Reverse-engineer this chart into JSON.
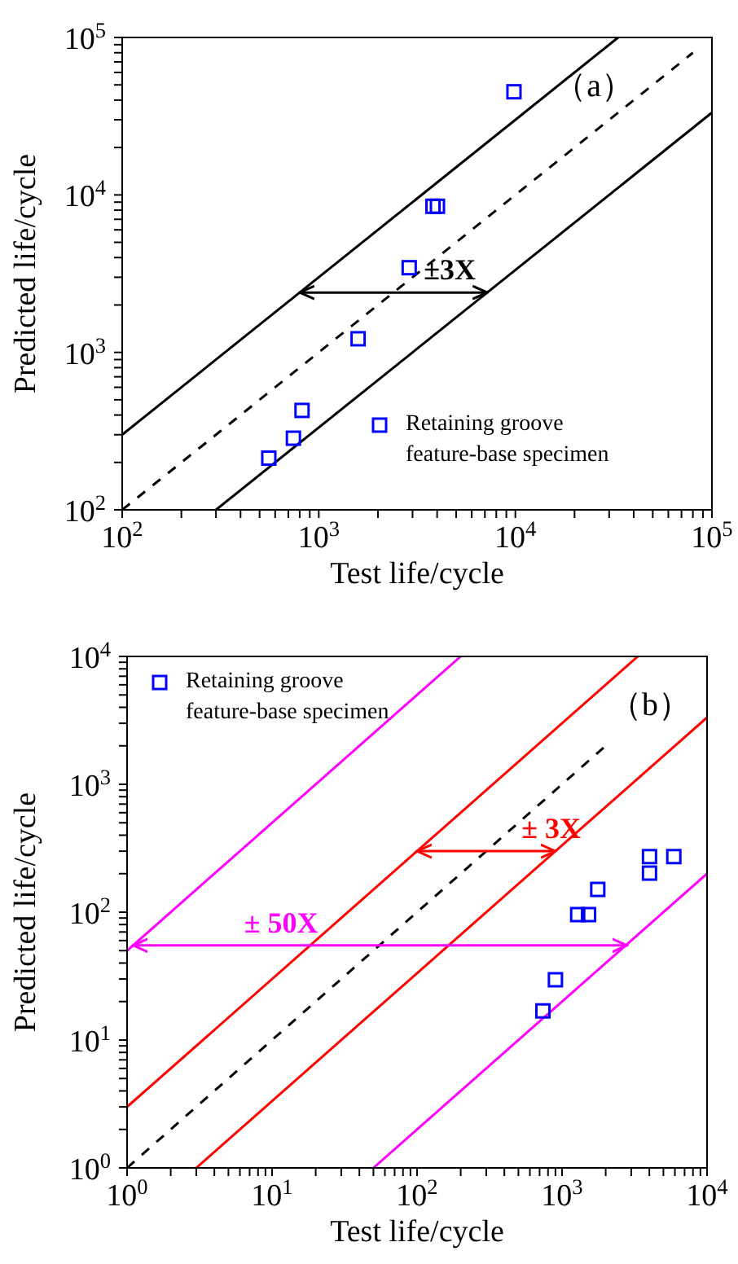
{
  "chart_data": [
    {
      "type": "scatter",
      "xlabel": "Test life/cycle",
      "ylabel": "Predicted life/cycle",
      "log": "xy",
      "legend": "bottom right",
      "xlim": [
        100,
        100000
      ],
      "ylim": [
        100,
        100000
      ],
      "xticks": [
        {
          "value": 100,
          "label": "10$^{2}$"
        },
        {
          "value": 200,
          "label": null
        },
        {
          "value": 300,
          "label": null
        },
        {
          "value": 400,
          "label": null
        },
        {
          "value": 500,
          "label": null
        },
        {
          "value": 600,
          "label": null
        },
        {
          "value": 700,
          "label": null
        },
        {
          "value": 800,
          "label": null
        },
        {
          "value": 900,
          "label": null
        },
        {
          "value": 1000,
          "label": "10$^{3}$"
        },
        {
          "value": 2000,
          "label": null
        },
        {
          "value": 3000,
          "label": null
        },
        {
          "value": 4000,
          "label": null
        },
        {
          "value": 5000,
          "label": null
        },
        {
          "value": 6000,
          "label": null
        },
        {
          "value": 7000,
          "label": null
        },
        {
          "value": 8000,
          "label": null
        },
        {
          "value": 9000,
          "label": null
        },
        {
          "value": 10000,
          "label": "10$^{4}$"
        },
        {
          "value": 20000,
          "label": null
        },
        {
          "value": 30000,
          "label": null
        },
        {
          "value": 40000,
          "label": null
        },
        {
          "value": 50000,
          "label": null
        },
        {
          "value": 60000,
          "label": null
        },
        {
          "value": 70000,
          "label": null
        },
        {
          "value": 80000,
          "label": null
        },
        {
          "value": 90000,
          "label": null
        },
        {
          "value": 100000,
          "label": "10$^{5}$"
        }
      ],
      "yticks": [
        {
          "value": 100,
          "label": "10$^{2}$"
        },
        {
          "value": 200,
          "label": null
        },
        {
          "value": 300,
          "label": null
        },
        {
          "value": 400,
          "label": null
        },
        {
          "value": 500,
          "label": null
        },
        {
          "value": 600,
          "label": null
        },
        {
          "value": 700,
          "label": null
        },
        {
          "value": 800,
          "label": null
        },
        {
          "value": 900,
          "label": null
        },
        {
          "value": 1000,
          "label": "10$^{3}$"
        },
        {
          "value": 2000,
          "label": null
        },
        {
          "value": 3000,
          "label": null
        },
        {
          "value": 4000,
          "label": null
        },
        {
          "value": 5000,
          "label": null
        },
        {
          "value": 6000,
          "label": null
        },
        {
          "value": 7000,
          "label": null
        },
        {
          "value": 8000,
          "label": null
        },
        {
          "value": 9000,
          "label": null
        },
        {
          "value": 10000,
          "label": "10$^{4}$"
        },
        {
          "value": 20000,
          "label": null
        },
        {
          "value": 30000,
          "label": null
        },
        {
          "value": 40000,
          "label": null
        },
        {
          "value": 50000,
          "label": null
        },
        {
          "value": 60000,
          "label": null
        },
        {
          "value": 70000,
          "label": null
        },
        {
          "value": 80000,
          "label": null
        },
        {
          "value": 90000,
          "label": null
        },
        {
          "value": 100000,
          "label": "10$^{5}$"
        }
      ],
      "series": [
        {
          "type": "line",
          "color": "#000000",
          "x": [
            100,
            33333
          ],
          "values": [
            300,
            100000
          ]
        },
        {
          "type": "line",
          "color": "#000000",
          "line_style": "dashed",
          "x": [
            100,
            80000
          ],
          "values": [
            100,
            80000
          ]
        },
        {
          "type": "line",
          "color": "#000000",
          "x": [
            300,
            100000
          ],
          "values": [
            100,
            33333
          ]
        },
        {
          "type": "line",
          "color": "#000000",
          "x": [
            800,
            7200
          ],
          "values": [
            2400,
            2400
          ]
        },
        {
          "name": "Retaining groove feature-base specimen",
          "marker": "square",
          "color": "#0000ff",
          "x": [
            557,
            743,
            822,
            1585,
            2884,
            3810,
            4015,
            9840
          ],
          "values": [
            213,
            285,
            428,
            1220,
            3450,
            8470,
            8470,
            45200
          ]
        }
      ],
      "annotations": [
        "（a）",
        "±3X"
      ]
    },
    {
      "type": "scatter",
      "xlabel": "Test life/cycle",
      "ylabel": "Predicted life/cycle",
      "log": "xy",
      "legend": "top left",
      "xlim": [
        1,
        10000
      ],
      "ylim": [
        1,
        10000
      ],
      "xticks": [
        {
          "value": 1,
          "label": "10$^{0}$"
        },
        {
          "value": 2,
          "label": null
        },
        {
          "value": 3,
          "label": null
        },
        {
          "value": 4,
          "label": null
        },
        {
          "value": 5,
          "label": null
        },
        {
          "value": 6,
          "label": null
        },
        {
          "value": 7,
          "label": null
        },
        {
          "value": 8,
          "label": null
        },
        {
          "value": 9,
          "label": null
        },
        {
          "value": 10,
          "label": "10$^{1}$"
        },
        {
          "value": 20,
          "label": null
        },
        {
          "value": 30,
          "label": null
        },
        {
          "value": 40,
          "label": null
        },
        {
          "value": 50,
          "label": null
        },
        {
          "value": 60,
          "label": null
        },
        {
          "value": 70,
          "label": null
        },
        {
          "value": 80,
          "label": null
        },
        {
          "value": 90,
          "label": null
        },
        {
          "value": 100,
          "label": "10$^{2}$"
        },
        {
          "value": 200,
          "label": null
        },
        {
          "value": 300,
          "label": null
        },
        {
          "value": 400,
          "label": null
        },
        {
          "value": 500,
          "label": null
        },
        {
          "value": 600,
          "label": null
        },
        {
          "value": 700,
          "label": null
        },
        {
          "value": 800,
          "label": null
        },
        {
          "value": 900,
          "label": null
        },
        {
          "value": 1000,
          "label": "10$^{3}$"
        },
        {
          "value": 2000,
          "label": null
        },
        {
          "value": 3000,
          "label": null
        },
        {
          "value": 4000,
          "label": null
        },
        {
          "value": 5000,
          "label": null
        },
        {
          "value": 6000,
          "label": null
        },
        {
          "value": 7000,
          "label": null
        },
        {
          "value": 8000,
          "label": null
        },
        {
          "value": 9000,
          "label": null
        },
        {
          "value": 10000,
          "label": "10$^{4}$"
        }
      ],
      "yticks": [
        {
          "value": 1,
          "label": "10$^{0}$"
        },
        {
          "value": 2,
          "label": null
        },
        {
          "value": 3,
          "label": null
        },
        {
          "value": 4,
          "label": null
        },
        {
          "value": 5,
          "label": null
        },
        {
          "value": 6,
          "label": null
        },
        {
          "value": 7,
          "label": null
        },
        {
          "value": 8,
          "label": null
        },
        {
          "value": 9,
          "label": null
        },
        {
          "value": 10,
          "label": "10$^{1}$"
        },
        {
          "value": 20,
          "label": null
        },
        {
          "value": 30,
          "label": null
        },
        {
          "value": 40,
          "label": null
        },
        {
          "value": 50,
          "label": null
        },
        {
          "value": 60,
          "label": null
        },
        {
          "value": 70,
          "label": null
        },
        {
          "value": 80,
          "label": null
        },
        {
          "value": 90,
          "label": null
        },
        {
          "value": 100,
          "label": "10$^{2}$"
        },
        {
          "value": 200,
          "label": null
        },
        {
          "value": 300,
          "label": null
        },
        {
          "value": 400,
          "label": null
        },
        {
          "value": 500,
          "label": null
        },
        {
          "value": 600,
          "label": null
        },
        {
          "value": 700,
          "label": null
        },
        {
          "value": 800,
          "label": null
        },
        {
          "value": 900,
          "label": null
        },
        {
          "value": 1000,
          "label": "10$^{3}$"
        },
        {
          "value": 2000,
          "label": null
        },
        {
          "value": 3000,
          "label": null
        },
        {
          "value": 4000,
          "label": null
        },
        {
          "value": 5000,
          "label": null
        },
        {
          "value": 6000,
          "label": null
        },
        {
          "value": 7000,
          "label": null
        },
        {
          "value": 8000,
          "label": null
        },
        {
          "value": 9000,
          "label": null
        },
        {
          "value": 10000,
          "label": "10$^{4}$"
        }
      ],
      "series": [
        {
          "type": "line",
          "color": "#ff00ff",
          "x": [
            1,
            200
          ],
          "values": [
            50,
            10000
          ]
        },
        {
          "type": "line",
          "color": "#ff0000",
          "x": [
            1,
            3333
          ],
          "values": [
            3,
            10000
          ]
        },
        {
          "type": "line",
          "color": "#000000",
          "line_style": "dashed",
          "x": [
            1,
            2000
          ],
          "values": [
            1,
            2000
          ]
        },
        {
          "type": "line",
          "color": "#ff0000",
          "x": [
            3,
            10000
          ],
          "values": [
            1,
            3333
          ]
        },
        {
          "type": "line",
          "color": "#ff00ff",
          "x": [
            50,
            10000
          ],
          "values": [
            1,
            200
          ]
        },
        {
          "type": "line",
          "color": "#ff0000",
          "x": [
            100,
            900
          ],
          "values": [
            300,
            300
          ]
        },
        {
          "type": "line",
          "color": "#ff00ff",
          "x": [
            1.1,
            2800
          ],
          "values": [
            55,
            55
          ]
        },
        {
          "name": "Retaining groove feature-base specimen",
          "marker": "square",
          "color": "#0000ff",
          "x": [
            738,
            900,
            1282,
            1524,
            1763,
            4010,
            4010,
            5900
          ],
          "values": [
            16.9,
            29.6,
            95.7,
            95.7,
            150.6,
            202,
            272,
            272
          ]
        }
      ],
      "annotations": [
        "（b）",
        "± 3X",
        "± 50X"
      ]
    }
  ]
}
